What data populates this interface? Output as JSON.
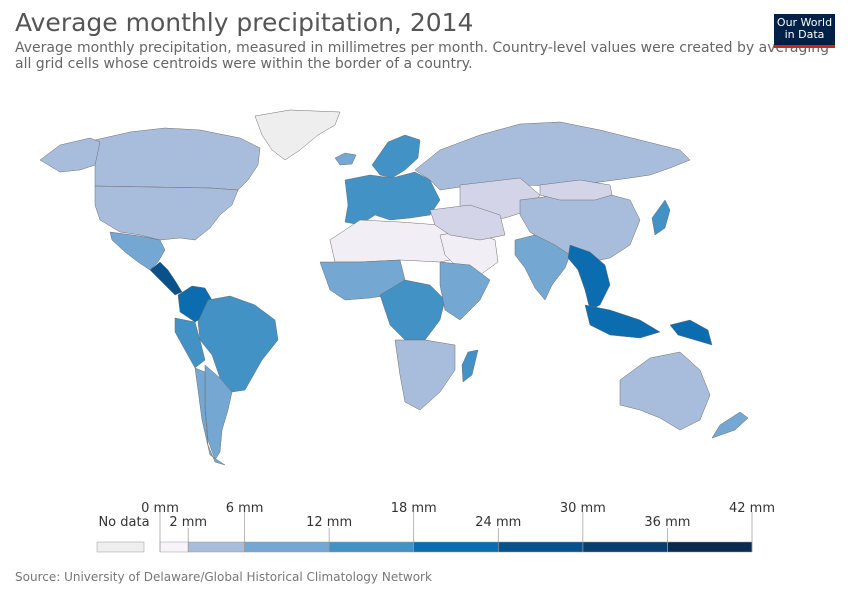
{
  "header": {
    "title": "Average monthly precipitation, 2014",
    "subtitle": "Average monthly precipitation, measured in millimetres per month. Country-level values were created by averaging all grid cells whose centroids were within the border of a country."
  },
  "logo": {
    "line1": "Our World",
    "line2": "in Data",
    "bg": "#002147",
    "accent": "#ce261e"
  },
  "legend": {
    "no_data_label": "No data",
    "no_data_color": "#eeeeee",
    "bins": [
      {
        "from": 0,
        "to": 2,
        "color": "#f7f4f9"
      },
      {
        "from": 2,
        "to": 6,
        "color": "#a8bcdc"
      },
      {
        "from": 6,
        "to": 12,
        "color": "#74a7d2"
      },
      {
        "from": 12,
        "to": 18,
        "color": "#4292c6"
      },
      {
        "from": 18,
        "to": 24,
        "color": "#0b6cb0"
      },
      {
        "from": 24,
        "to": 30,
        "color": "#08518a"
      },
      {
        "from": 30,
        "to": 36,
        "color": "#083e6e"
      },
      {
        "from": 36,
        "to": 42,
        "color": "#082b4f"
      }
    ],
    "upper_ticks": [
      {
        "value": 0,
        "label": "0 mm"
      },
      {
        "value": 6,
        "label": "6 mm"
      },
      {
        "value": 18,
        "label": "18 mm"
      },
      {
        "value": 30,
        "label": "30 mm"
      },
      {
        "value": 42,
        "label": "42 mm"
      }
    ],
    "lower_ticks": [
      {
        "value": 2,
        "label": "2 mm"
      },
      {
        "value": 12,
        "label": "12 mm"
      },
      {
        "value": 24,
        "label": "24 mm"
      },
      {
        "value": 36,
        "label": "36 mm"
      }
    ]
  },
  "source": "Source: University of Delaware/Global Historical Climatology Network",
  "regions": [
    {
      "name": "Greenland",
      "color": "#eeeeee"
    },
    {
      "name": "Canada",
      "color": "#a8bcdc"
    },
    {
      "name": "United States",
      "color": "#a8bcdc"
    },
    {
      "name": "Alaska",
      "color": "#a8bcdc"
    },
    {
      "name": "Mexico",
      "color": "#74a7d2"
    },
    {
      "name": "Central America",
      "color": "#08518a"
    },
    {
      "name": "Colombia",
      "color": "#0b6cb0"
    },
    {
      "name": "Brazil",
      "color": "#4292c6"
    },
    {
      "name": "Peru",
      "color": "#4292c6"
    },
    {
      "name": "Argentina",
      "color": "#74a7d2"
    },
    {
      "name": "Chile",
      "color": "#74a7d2"
    },
    {
      "name": "Iceland",
      "color": "#74a7d2"
    },
    {
      "name": "Scandinavia",
      "color": "#4292c6"
    },
    {
      "name": "Europe",
      "color": "#4292c6"
    },
    {
      "name": "Russia",
      "color": "#a8bcdc"
    },
    {
      "name": "Central Asia",
      "color": "#d4d4e8"
    },
    {
      "name": "China",
      "color": "#a8bcdc"
    },
    {
      "name": "Mongolia",
      "color": "#d4d4e8"
    },
    {
      "name": "India",
      "color": "#74a7d2"
    },
    {
      "name": "Southeast Asia",
      "color": "#0b6cb0"
    },
    {
      "name": "Japan",
      "color": "#4292c6"
    },
    {
      "name": "Indonesia",
      "color": "#0b6cb0"
    },
    {
      "name": "Papua New Guinea",
      "color": "#0b6cb0"
    },
    {
      "name": "Australia",
      "color": "#a8bcdc"
    },
    {
      "name": "New Zealand",
      "color": "#74a7d2"
    },
    {
      "name": "Sahara",
      "color": "#f2eef6"
    },
    {
      "name": "Arabian Peninsula",
      "color": "#f2eef6"
    },
    {
      "name": "West Africa",
      "color": "#74a7d2"
    },
    {
      "name": "Central Africa",
      "color": "#4292c6"
    },
    {
      "name": "East Africa",
      "color": "#74a7d2"
    },
    {
      "name": "Southern Africa",
      "color": "#a8bcdc"
    },
    {
      "name": "Madagascar",
      "color": "#4292c6"
    },
    {
      "name": "Middle East",
      "color": "#d4d4e8"
    }
  ]
}
